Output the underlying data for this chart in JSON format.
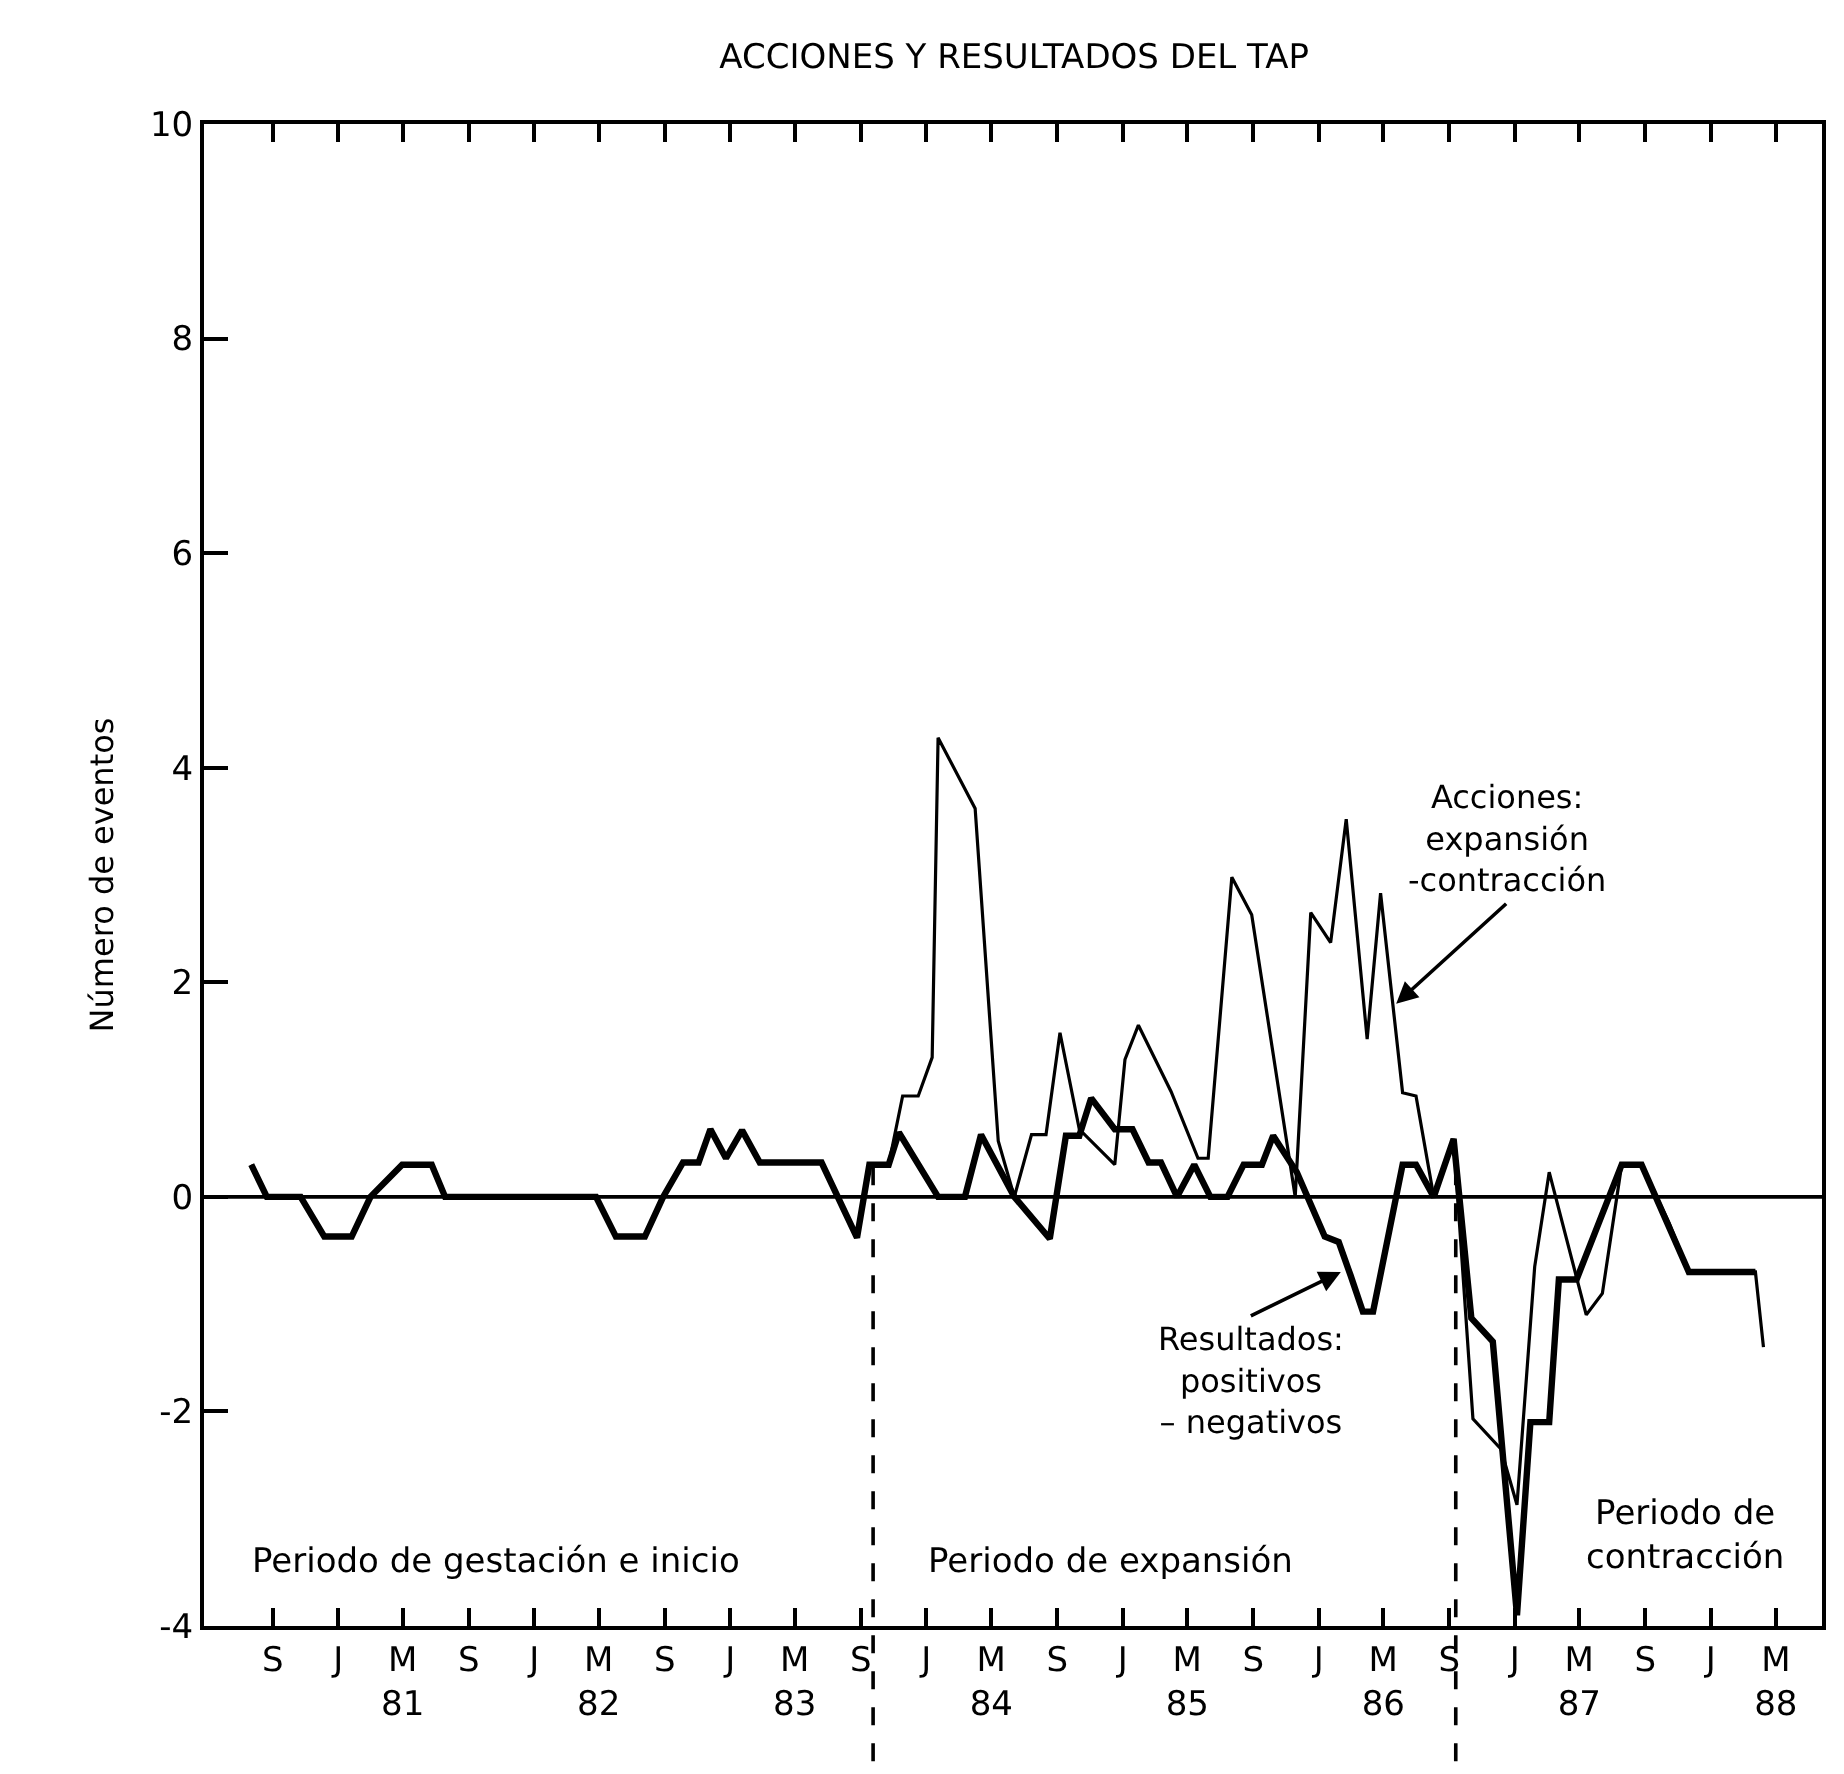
{
  "chart_data": {
    "type": "line",
    "title": "ACCIONES Y RESULTADOS DEL TAP",
    "ylabel": "Número de eventos",
    "series": [
      {
        "color": "#000000",
        "x": [
          "1980-07-23",
          "1980-08-21",
          "1980-10-23",
          "1980-12-06",
          "1981-01-26",
          "1981-03-02",
          "1981-04-30",
          "1981-06-24",
          "1981-07-19",
          "1982-04-26",
          "1982-06-02",
          "1982-07-26",
          "1982-08-29",
          "1982-10-05",
          "1982-11-03",
          "1982-11-25",
          "1982-12-24",
          "1983-01-23",
          "1983-02-25",
          "1983-04-08",
          "1983-06-20",
          "1983-08-25",
          "1983-09-17",
          "1983-10-23",
          "1983-11-18",
          "1983-12-17",
          "1984-01-12",
          "1984-01-23",
          "1984-04-01",
          "1984-05-14",
          "1984-06-13",
          "1984-07-15",
          "1984-08-11",
          "1984-09-06",
          "1984-10-12",
          "1984-12-17",
          "1985-01-05",
          "1985-01-30",
          "1985-04-01",
          "1985-05-21",
          "1985-06-09",
          "1985-07-23",
          "1985-08-29",
          "1985-11-18",
          "1985-12-17",
          "1986-01-23",
          "1986-02-21",
          "1986-04-01",
          "1986-04-26",
          "1986-06-06",
          "1986-07-01",
          "1986-08-03",
          "1986-09-09",
          "1986-10-15",
          "1986-12-06",
          "1987-01-05",
          "1987-02-07",
          "1987-03-06",
          "1987-05-14",
          "1987-06-13",
          "1987-07-19",
          "1987-08-25",
          "1987-10-15",
          "1987-11-21",
          "1988-03-24",
          "1988-04-08"
        ],
        "values": [
          0.3,
          0,
          0,
          -0.37,
          -0.37,
          0,
          0.3,
          0.3,
          0,
          0,
          -0.37,
          -0.37,
          0,
          0.32,
          0.32,
          0.63,
          0.36,
          0.62,
          0.32,
          0.32,
          0.32,
          -0.38,
          0.3,
          0.3,
          0.94,
          0.94,
          1.3,
          4.28,
          3.62,
          0.52,
          0,
          0.58,
          0.58,
          1.53,
          0.63,
          0.3,
          1.28,
          1.6,
          0.98,
          0.36,
          0.36,
          2.98,
          2.63,
          0,
          2.65,
          2.37,
          3.52,
          1.47,
          2.83,
          0.97,
          0.94,
          0,
          0.54,
          -2.07,
          -2.35,
          -2.87,
          -0.65,
          0.23,
          -1.1,
          -0.9,
          0.3,
          0.3,
          -0.24,
          -0.7,
          -0.7,
          -1.4
        ]
      },
      {
        "color": "#000000",
        "x": [
          "1980-07-23",
          "1980-08-21",
          "1980-10-23",
          "1980-12-06",
          "1981-01-26",
          "1981-03-02",
          "1981-04-30",
          "1981-06-24",
          "1981-07-19",
          "1982-04-26",
          "1982-06-02",
          "1982-07-26",
          "1982-08-29",
          "1982-10-05",
          "1982-11-03",
          "1982-11-25",
          "1982-12-24",
          "1983-01-23",
          "1983-02-25",
          "1983-04-08",
          "1983-06-20",
          "1983-08-25",
          "1983-09-17",
          "1983-10-23",
          "1983-11-11",
          "1984-01-23",
          "1984-03-13",
          "1984-04-12",
          "1984-06-13",
          "1984-08-18",
          "1984-09-17",
          "1984-10-12",
          "1984-11-03",
          "1984-12-17",
          "1985-01-19",
          "1985-02-18",
          "1985-03-13",
          "1985-04-12",
          "1985-05-14",
          "1985-06-13",
          "1985-07-15",
          "1985-08-14",
          "1985-09-17",
          "1985-10-08",
          "1985-11-21",
          "1986-01-12",
          "1986-02-07",
          "1986-03-01",
          "1986-03-24",
          "1986-04-12",
          "1986-06-06",
          "1986-07-01",
          "1986-08-03",
          "1986-09-09",
          "1986-10-12",
          "1986-11-21",
          "1987-01-05",
          "1987-01-30",
          "1987-03-06",
          "1987-03-24",
          "1987-04-26",
          "1987-07-19",
          "1987-08-25",
          "1987-11-21",
          "1988-03-24"
        ],
        "values": [
          0.3,
          0,
          0,
          -0.37,
          -0.37,
          0,
          0.3,
          0.3,
          0,
          0,
          -0.37,
          -0.37,
          0,
          0.32,
          0.32,
          0.63,
          0.36,
          0.62,
          0.32,
          0.32,
          0.32,
          -0.38,
          0.3,
          0.3,
          0.6,
          0,
          0,
          0.58,
          0,
          -0.39,
          0.57,
          0.57,
          0.92,
          0.63,
          0.63,
          0.32,
          0.32,
          0,
          0.3,
          0,
          0,
          0.3,
          0.3,
          0.57,
          0.23,
          -0.37,
          -0.42,
          -0.73,
          -1.07,
          -1.07,
          0.3,
          0.3,
          0,
          0.54,
          -1.13,
          -1.35,
          -3.9,
          -2.1,
          -2.1,
          -0.77,
          -0.77,
          0.3,
          0.3,
          -0.7,
          -0.7
        ]
      }
    ],
    "xlim": [
      "1980-04-26",
      "1988-07-26"
    ],
    "xticks": [
      {
        "value": "1980-09",
        "label": "S"
      },
      {
        "value": "1981-01",
        "label": "J"
      },
      {
        "value": "1981-05",
        "label": "M\n81"
      },
      {
        "value": "1981-09",
        "label": "S"
      },
      {
        "value": "1982-01",
        "label": "J"
      },
      {
        "value": "1982-05",
        "label": "M\n82"
      },
      {
        "value": "1982-09",
        "label": "S"
      },
      {
        "value": "1983-01",
        "label": "J"
      },
      {
        "value": "1983-05",
        "label": "M\n83"
      },
      {
        "value": "1983-09",
        "label": "S"
      },
      {
        "value": "1984-01",
        "label": "J"
      },
      {
        "value": "1984-05",
        "label": "M\n84"
      },
      {
        "value": "1984-09",
        "label": "S"
      },
      {
        "value": "1985-01",
        "label": "J"
      },
      {
        "value": "1985-05",
        "label": "M\n85"
      },
      {
        "value": "1985-09",
        "label": "S"
      },
      {
        "value": "1986-01",
        "label": "J"
      },
      {
        "value": "1986-05",
        "label": "M\n86"
      },
      {
        "value": "1986-09",
        "label": "S"
      },
      {
        "value": "1987-01",
        "label": "J"
      },
      {
        "value": "1987-05",
        "label": "M\n87"
      },
      {
        "value": "1987-09",
        "label": "S"
      },
      {
        "value": "1988-01",
        "label": "J"
      },
      {
        "value": "1988-05",
        "label": "M\n88"
      }
    ],
    "ylim": [
      -4,
      10
    ],
    "yticks": [
      -4,
      -2,
      0,
      2,
      4,
      6,
      8,
      10
    ],
    "marker": "none",
    "line_style": "solid",
    "ref_lines": [
      {
        "axis": "y",
        "value": 0
      },
      {
        "axis": "x",
        "value": "1983-09-24",
        "line_style": "dashed"
      },
      {
        "axis": "x",
        "value": "1986-09-13",
        "line_style": "dashed"
      }
    ],
    "annotations": [
      {
        "text": "Acciones:\nexpansión\n-contracción",
        "x": "1986-05-25",
        "y": 1.8
      },
      {
        "text": "Resultados:\npositivos\n– negativos",
        "x": "1986-02-11",
        "y": -0.7
      },
      "Periodo de gestación e inicio",
      "Periodo de expansión",
      "Periodo de\ncontracción"
    ]
  }
}
